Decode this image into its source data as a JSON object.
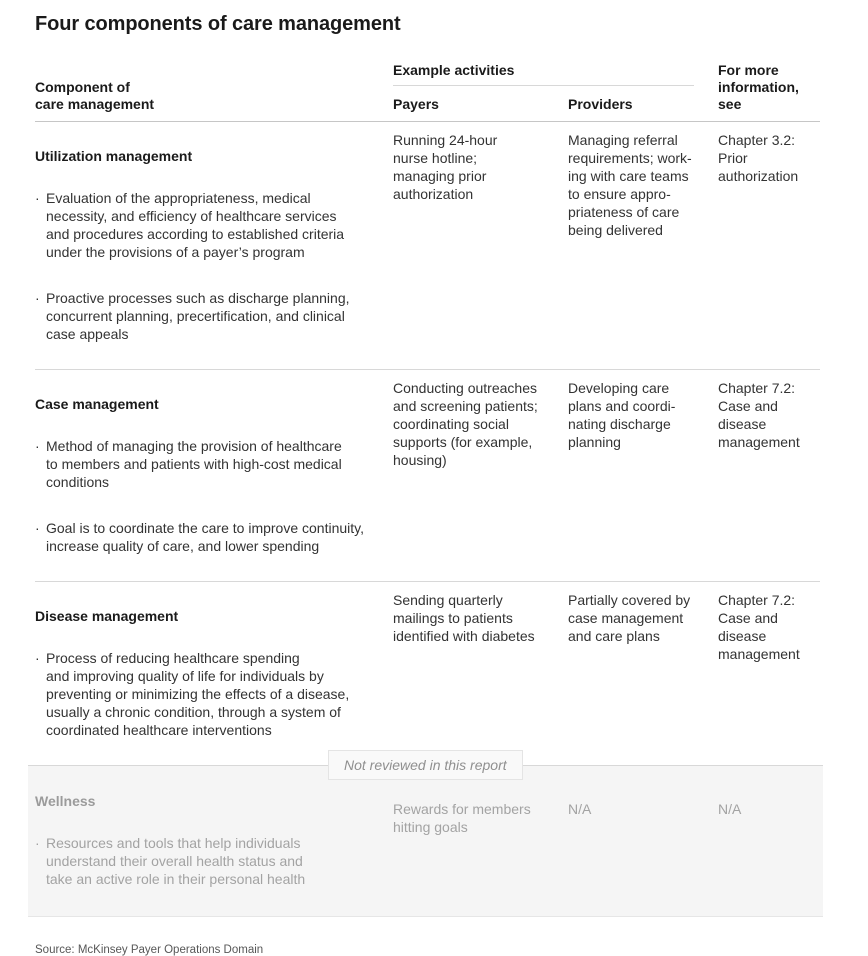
{
  "page": {
    "title": "Four components of care management",
    "source": "Source: McKinsey Payer Operations Domain"
  },
  "table": {
    "headers": {
      "component": "Component of\ncare management",
      "example_activities": "Example activities",
      "payers": "Payers",
      "providers": "Providers",
      "more_info": "For more\ninformation,\nsee"
    },
    "not_reviewed_badge": "Not reviewed in this report",
    "rows": [
      {
        "component": "Utilization management",
        "bullets": [
          "Evaluation of the appropriateness, medical\nnecessity, and efficiency of healthcare services\nand procedures according to established criteria\nunder the provisions of a payer’s program",
          "Proactive processes such as discharge planning,\nconcurrent planning, precertification, and clinical\ncase appeals"
        ],
        "payers": "Running 24-hour\nnurse hotline;\nmanaging prior\nauthorization",
        "providers": "Managing referral\nrequirements; work-\ning with care teams\nto ensure appro-\npriateness of care\nbeing delivered",
        "more_info": "Chapter 3.2:\nPrior\nauthorization"
      },
      {
        "component": "Case management",
        "bullets": [
          "Method of managing the provision of healthcare\nto members and patients with high-cost medical\nconditions",
          "Goal is to coordinate the care to improve continuity,\nincrease quality of care, and lower spending"
        ],
        "payers": "Conducting outreaches\nand screening patients;\ncoordinating social\nsupports (for example,\nhousing)",
        "providers": "Developing care\nplans and coordi-\nnating discharge\nplanning",
        "more_info": "Chapter 7.2:\nCase and\ndisease\nmanagement"
      },
      {
        "component": "Disease management",
        "bullets": [
          "Process of reducing healthcare spending\nand improving quality of life for individuals by\npreventing or minimizing the effects of a disease,\nusually a chronic condition, through a system of\ncoordinated healthcare interventions"
        ],
        "payers": "Sending quarterly\nmailings to patients\nidentified with diabetes",
        "providers": "Partially covered by\ncase management\nand care plans",
        "more_info": "Chapter 7.2:\nCase and\ndisease\nmanagement"
      },
      {
        "component": "Wellness",
        "bullets": [
          "Resources and tools that help individuals\nunderstand their overall health status and\ntake an active role in their personal health"
        ],
        "payers": "Rewards for members\nhitting goals",
        "providers": "N/A",
        "more_info": "N/A"
      }
    ]
  },
  "colors": {
    "title_text": "#1a1a1a",
    "body_text": "#333333",
    "muted_text": "#a3a3a3",
    "separator": "#d8d8d8",
    "wellness_bg": "#f5f5f5",
    "badge_bg": "#f9f9f9",
    "badge_border": "#e4e4e4"
  }
}
